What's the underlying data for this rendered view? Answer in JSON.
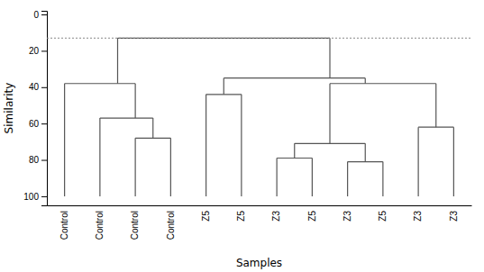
{
  "chart_data": {
    "type": "dendrogram",
    "x_label": "Samples",
    "y_label": "Similarity",
    "categories": [
      "Control",
      "Control",
      "Control",
      "Control",
      "Z5",
      "Z5",
      "Z3",
      "Z5",
      "Z3",
      "Z5",
      "Z3",
      "Z3"
    ],
    "leaf_value": 100,
    "merges": [
      {
        "left": [
          2
        ],
        "right": [
          3
        ],
        "height": 68
      },
      {
        "left": [
          1
        ],
        "right": [
          2,
          3
        ],
        "height": 57
      },
      {
        "left": [
          0
        ],
        "right": [
          1,
          2,
          3
        ],
        "height": 38
      },
      {
        "left": [
          4
        ],
        "right": [
          5
        ],
        "height": 44
      },
      {
        "left": [
          6
        ],
        "right": [
          7
        ],
        "height": 79
      },
      {
        "left": [
          8
        ],
        "right": [
          9
        ],
        "height": 81
      },
      {
        "left": [
          6,
          7
        ],
        "right": [
          8,
          9
        ],
        "height": 71
      },
      {
        "left": [
          10
        ],
        "right": [
          11
        ],
        "height": 62
      },
      {
        "left": [
          6,
          7,
          8,
          9
        ],
        "right": [
          10,
          11
        ],
        "height": 38
      },
      {
        "left": [
          4,
          5
        ],
        "right": [
          6,
          7,
          8,
          9,
          10,
          11
        ],
        "height": 35
      },
      {
        "left": [
          0,
          1,
          2,
          3
        ],
        "right": [
          4,
          5,
          6,
          7,
          8,
          9,
          10,
          11
        ],
        "height": 13
      }
    ],
    "reference_line": 13,
    "color": "#555555",
    "ylim": [
      105,
      -2
    ],
    "yticks": [
      0,
      20,
      40,
      60,
      80,
      100
    ]
  }
}
